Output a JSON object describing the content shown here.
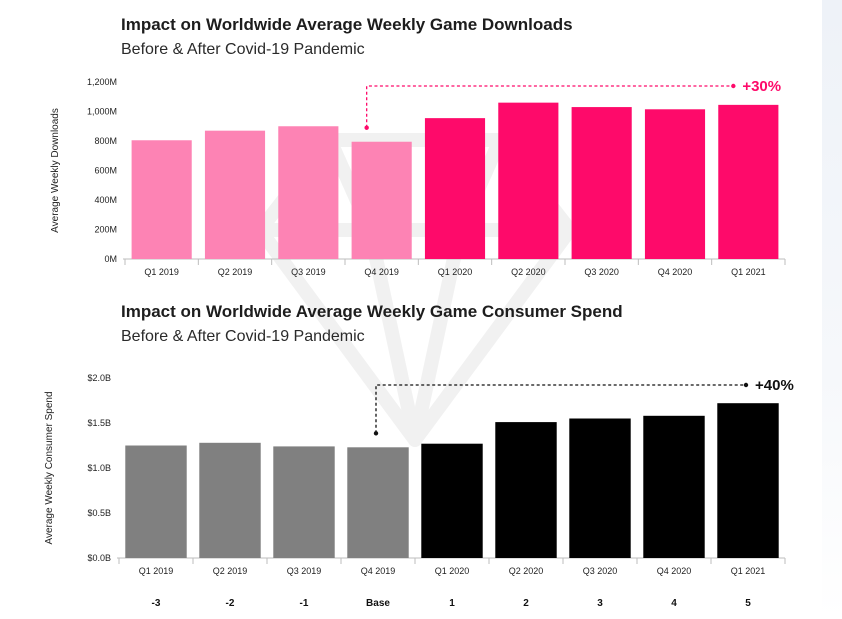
{
  "chart_data": [
    {
      "type": "bar",
      "title": "Impact on Worldwide Average Weekly Game Downloads",
      "subtitle": "Before & After Covid-19 Pandemic",
      "categories": [
        "Q1 2019",
        "Q2 2019",
        "Q3 2019",
        "Q4 2019",
        "Q1 2020",
        "Q2 2020",
        "Q3 2020",
        "Q4 2020",
        "Q1 2021"
      ],
      "values": [
        805,
        870,
        900,
        795,
        955,
        1060,
        1030,
        1015,
        1045
      ],
      "unit": "M",
      "ylabel": "Average Weekly Downloads",
      "xlabel": "",
      "ylim": [
        0,
        1200
      ],
      "yticks": [
        "0M",
        "200M",
        "400M",
        "600M",
        "800M",
        "1,000M",
        "1,200M"
      ],
      "colors": {
        "before": "#fd83b4",
        "after": "#fe0a6a"
      },
      "callout": {
        "text": "+30%",
        "from": "Q4 2019",
        "to": "Q1 2021",
        "color": "#fe0a6a"
      }
    },
    {
      "type": "bar",
      "title": "Impact on Worldwide Average Weekly Game Consumer Spend",
      "subtitle": "Before & After Covid-19 Pandemic",
      "categories": [
        "Q1 2019",
        "Q2 2019",
        "Q3 2019",
        "Q4 2019",
        "Q1 2020",
        "Q2 2020",
        "Q3 2020",
        "Q4 2020",
        "Q1 2021"
      ],
      "period_index": [
        "-3",
        "-2",
        "-1",
        "Base",
        "1",
        "2",
        "3",
        "4",
        "5"
      ],
      "values": [
        1.25,
        1.28,
        1.24,
        1.23,
        1.27,
        1.51,
        1.55,
        1.58,
        1.72
      ],
      "unit": "B",
      "ylabel": "Average Weekly Consumer Spend",
      "xlabel": "",
      "ylim": [
        0,
        2.0
      ],
      "yticks": [
        "$0.0B",
        "$0.5B",
        "$1.0B",
        "$1.5B",
        "$2.0B"
      ],
      "colors": {
        "before": "#808080",
        "after": "#000000"
      },
      "callout": {
        "text": "+40%",
        "from": "Q4 2019",
        "to": "Q1 2021",
        "color": "#111111"
      }
    }
  ]
}
